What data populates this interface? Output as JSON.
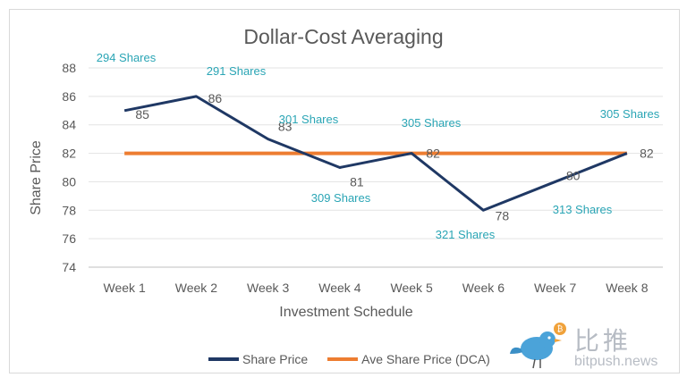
{
  "chart_data": {
    "type": "line",
    "title": "Dollar-Cost Averaging",
    "xlabel": "Investment Schedule",
    "ylabel": "Share Price",
    "ylim": [
      74,
      88
    ],
    "yticks": [
      74,
      76,
      78,
      80,
      82,
      84,
      86,
      88
    ],
    "categories": [
      "Week 1",
      "Week 2",
      "Week 3",
      "Week 4",
      "Week 5",
      "Week 6",
      "Week 7",
      "Week 8"
    ],
    "series": [
      {
        "name": "Share Price",
        "values": [
          85,
          86,
          83,
          81,
          82,
          78,
          80,
          82
        ],
        "color": "#1f3864"
      },
      {
        "name": "Ave Share Price (DCA)",
        "values": [
          82,
          82,
          82,
          82,
          82,
          82,
          82,
          82
        ],
        "color": "#ed7d31"
      }
    ],
    "data_labels": [
      "85",
      "86",
      "83",
      "81",
      "82",
      "78",
      "80",
      "82"
    ],
    "share_annotations": [
      "294 Shares",
      "291 Shares",
      "301 Shares",
      "309 Shares",
      "305 Shares",
      "321 Shares",
      "313 Shares",
      "305 Shares"
    ],
    "annotation_color": "#2aa5b5",
    "grid": true,
    "legend": "bottom"
  },
  "watermark": {
    "chinese": "比推",
    "site": "bitpush.news"
  }
}
